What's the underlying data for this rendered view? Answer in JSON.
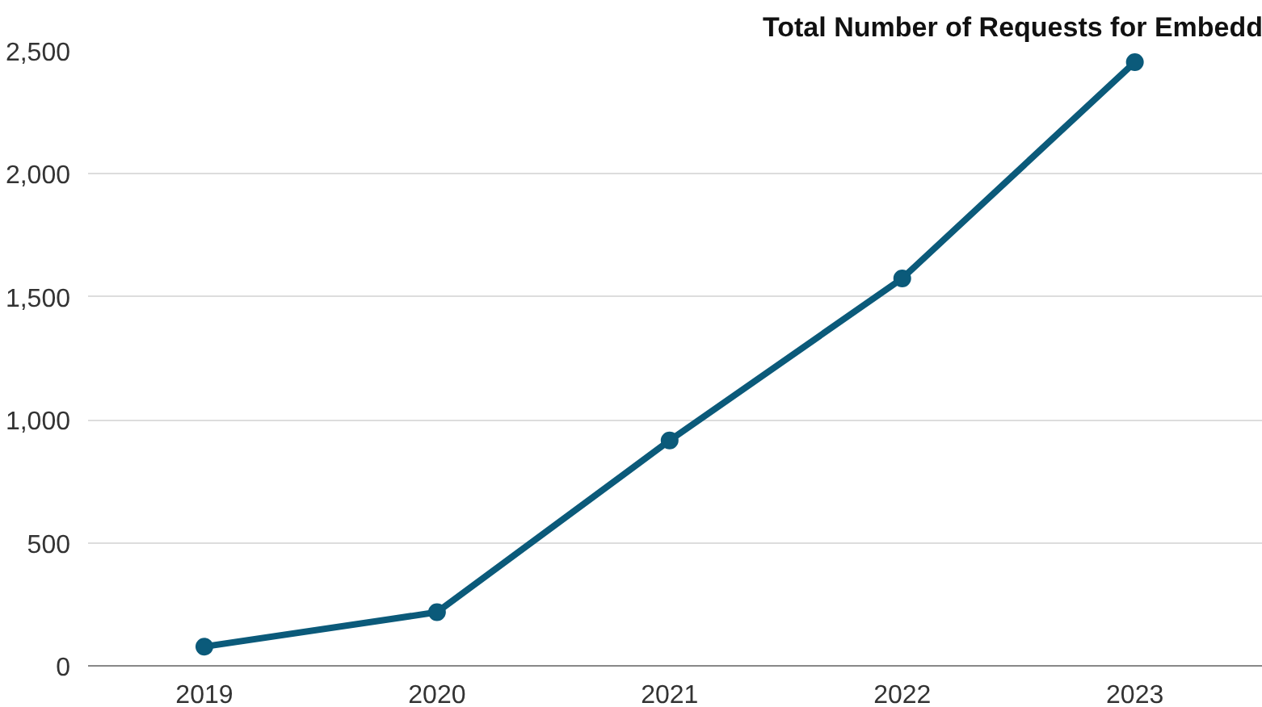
{
  "chart_data": {
    "type": "line",
    "title": "Total Number of Requests for Embedd",
    "categories": [
      "2019",
      "2020",
      "2021",
      "2022",
      "2023"
    ],
    "series": [
      {
        "color": "#0b5a7a",
        "values": [
          78,
          218,
          916,
          1575,
          2454
        ]
      }
    ],
    "ylim": [
      0,
      2500
    ],
    "yticks": [
      0,
      {
        "value": 500,
        "label": "500"
      },
      {
        "value": 1000,
        "label": "1,000"
      },
      {
        "value": 1500,
        "label": "1,500"
      },
      {
        "value": 2000,
        "label": "2,000"
      },
      {
        "value": 2500,
        "label": "2,500"
      }
    ],
    "grid": "y",
    "marker": "circle",
    "line_style": "solid"
  }
}
